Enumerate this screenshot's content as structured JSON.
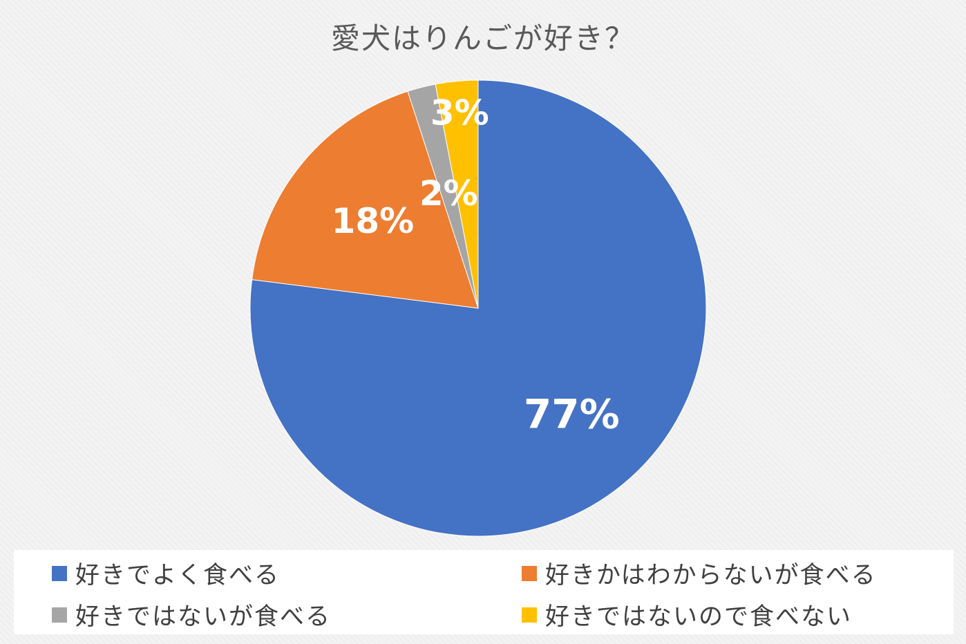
{
  "chart_data": {
    "type": "pie",
    "title": "愛犬はりんごが好き？",
    "categories": [
      "好きでよく食べる",
      "好きかはわからないが食べる",
      "好きではないが食べる",
      "好きではないので食べない"
    ],
    "values": [
      77,
      18,
      2,
      3
    ],
    "value_labels": [
      "77%",
      "18%",
      "2%",
      "3%"
    ],
    "colors": [
      "#4472c4",
      "#ed7d31",
      "#a5a5a5",
      "#ffc000"
    ],
    "start_angle": "12 o'clock",
    "direction": "clockwise",
    "legend_position": "bottom"
  }
}
